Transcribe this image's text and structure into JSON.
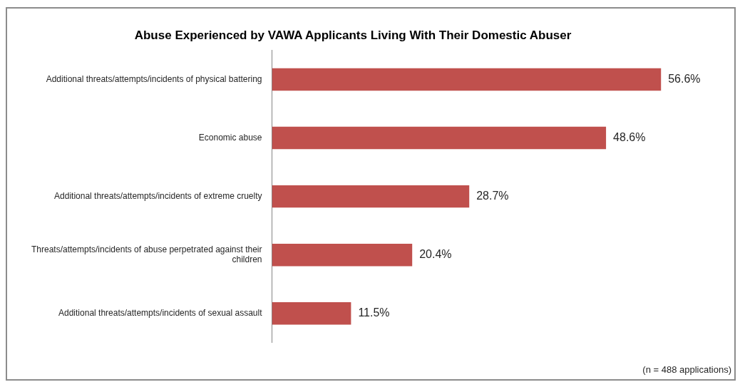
{
  "chart_data": {
    "type": "bar",
    "orientation": "horizontal",
    "title": "Abuse Experienced by VAWA Applicants Living With Their Domestic Abuser",
    "categories": [
      "Additional threats/attempts/incidents of physical battering",
      "Economic abuse",
      "Additional threats/attempts/incidents of extreme cruelty",
      "Threats/attempts/incidents of abuse perpetrated against their children",
      "Additional threats/attempts/incidents of sexual assault"
    ],
    "values": [
      56.6,
      48.6,
      28.7,
      20.4,
      11.5
    ],
    "value_labels": [
      "56.6%",
      "48.6%",
      "28.7%",
      "20.4%",
      "11.5%"
    ],
    "color": "#c0504d",
    "annotations": [
      "(n = 488 applications)"
    ]
  }
}
